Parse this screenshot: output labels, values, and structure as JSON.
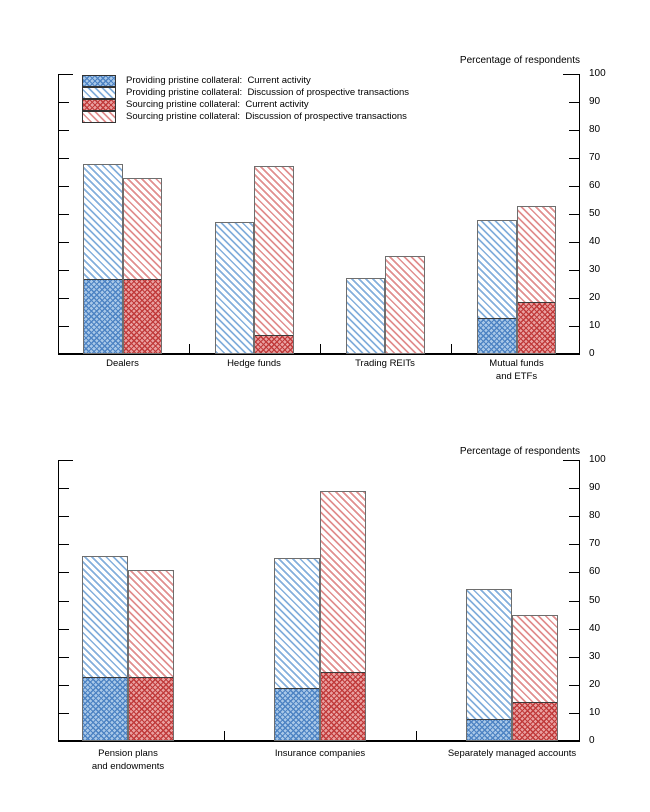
{
  "colors": {
    "providing_base": "#a9c8e8",
    "providing_hatch": "#4d83c3",
    "providing_light_hatch": "#84afdc",
    "sourcing_base": "#e9a0a0",
    "sourcing_hatch": "#c03a3a",
    "sourcing_light_hatch": "#e18f8f",
    "bar_border": "#6e6e6e",
    "axis": "#000000",
    "background": "#ffffff"
  },
  "legend": {
    "items": [
      {
        "label": "Providing pristine collateral:  Current activity",
        "swatch": "blue-crosshatch"
      },
      {
        "label": "Providing pristine collateral:  Discussion of prospective transactions",
        "swatch": "blue-diagonal"
      },
      {
        "label": "Sourcing pristine collateral:  Current activity",
        "swatch": "red-crosshatch"
      },
      {
        "label": "Sourcing pristine collateral:  Discussion of prospective transactions",
        "swatch": "red-diagonal"
      }
    ]
  },
  "chart_data": [
    {
      "type": "bar",
      "title": "Percentage of respondents",
      "ylabel": "Percentage of respondents",
      "ylim": [
        0,
        100
      ],
      "ytick_step": 10,
      "grid": false,
      "legend_position": "top-left",
      "bar_structure": "Each category has a blue (providing) bar and a red (sourcing) bar; dense crosshatched lower segment = current activity, light diagonally hatched upper portion extends to the discussion-of-prospective-transactions level (total bar height).",
      "categories": [
        "Dealers",
        "Hedge funds",
        "Trading REITs",
        "Mutual funds and ETFs"
      ],
      "category_label_lines": [
        [
          "Dealers"
        ],
        [
          "Hedge funds"
        ],
        [
          "Trading REITs"
        ],
        [
          "Mutual funds",
          "and ETFs"
        ]
      ],
      "series": [
        {
          "name": "Providing pristine collateral: Current activity",
          "values": [
            26,
            0,
            0,
            12
          ]
        },
        {
          "name": "Providing pristine collateral: Discussion of prospective transactions (bar top)",
          "values": [
            68,
            47,
            27,
            48
          ]
        },
        {
          "name": "Sourcing pristine collateral: Current activity",
          "values": [
            26,
            6,
            0,
            18
          ]
        },
        {
          "name": "Sourcing pristine collateral: Discussion of prospective transactions (bar top)",
          "values": [
            63,
            67,
            35,
            53
          ]
        }
      ]
    },
    {
      "type": "bar",
      "title": "Percentage of respondents",
      "ylabel": "Percentage of respondents",
      "ylim": [
        0,
        100
      ],
      "ytick_step": 10,
      "grid": false,
      "legend_position": "none",
      "bar_structure": "Each category has a blue (providing) bar and a red (sourcing) bar; dense crosshatched lower segment = current activity, light diagonally hatched upper portion extends to the discussion-of-prospective-transactions level (total bar height).",
      "categories": [
        "Pension plans and endowments",
        "Insurance companies",
        "Separately managed accounts"
      ],
      "category_label_lines": [
        [
          "Pension plans",
          "and endowments"
        ],
        [
          "Insurance companies"
        ],
        [
          "Separately managed accounts"
        ]
      ],
      "series": [
        {
          "name": "Providing pristine collateral: Current activity",
          "values": [
            22,
            18,
            7
          ]
        },
        {
          "name": "Providing pristine collateral: Discussion of prospective transactions (bar top)",
          "values": [
            66,
            65,
            54
          ]
        },
        {
          "name": "Sourcing pristine collateral: Current activity",
          "values": [
            22,
            24,
            13
          ]
        },
        {
          "name": "Sourcing pristine collateral: Discussion of prospective transactions (bar top)",
          "values": [
            61,
            89,
            45
          ]
        }
      ]
    }
  ]
}
